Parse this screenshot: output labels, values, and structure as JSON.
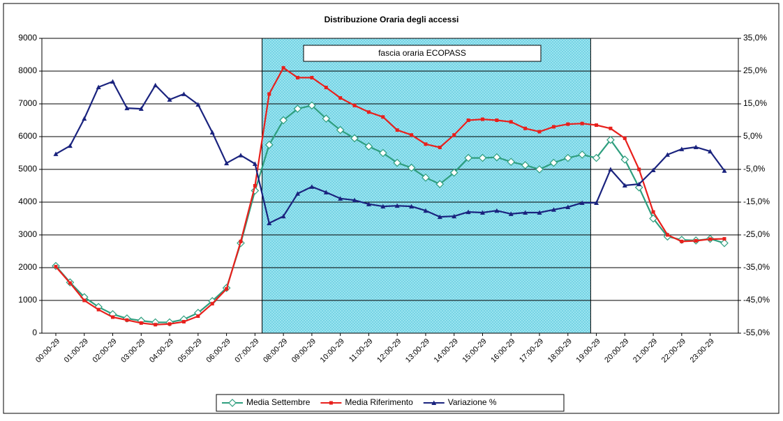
{
  "chart_data": {
    "type": "line",
    "title": "Distribuzione Oraria degli accessi",
    "annotation": "fascia oraria ECOPASS",
    "categories": [
      "00:00-29",
      null,
      "01:00-29",
      null,
      "02:00-29",
      null,
      "03:00-29",
      null,
      "04:00-29",
      null,
      "05:00-29",
      null,
      "06:00-29",
      null,
      "07:00-29",
      null,
      "08:00-29",
      null,
      "09:00-29",
      null,
      "10:00-29",
      null,
      "11:00-29",
      null,
      "12:00-29",
      null,
      "13:00-29",
      null,
      "14:00-29",
      null,
      "15:00-29",
      null,
      "16:00-29",
      null,
      "17:00-29",
      null,
      "18:00-29",
      null,
      "19:00-29",
      null,
      "20:00-29",
      null,
      "21:00-29",
      null,
      "22:00-29",
      null,
      "23:00-29",
      null
    ],
    "series": [
      {
        "name": "Media Settembre",
        "color": "#2e9e7e",
        "marker": "diamond",
        "values": [
          2050,
          1550,
          1100,
          800,
          580,
          450,
          380,
          330,
          330,
          420,
          620,
          980,
          1380,
          2750,
          4350,
          5750,
          6500,
          6850,
          6950,
          6550,
          6200,
          5950,
          5700,
          5500,
          5200,
          5050,
          4750,
          4550,
          4900,
          5350,
          5350,
          5370,
          5230,
          5130,
          5000,
          5200,
          5350,
          5450,
          5350,
          5900,
          5300,
          4450,
          3500,
          2950,
          2850,
          2830,
          2880,
          2750
        ]
      },
      {
        "name": "Media Riferimento",
        "color": "#e8201c",
        "marker": "square",
        "values": [
          2030,
          1530,
          1000,
          720,
          490,
          400,
          310,
          260,
          280,
          350,
          520,
          900,
          1350,
          2800,
          4500,
          7300,
          8100,
          7800,
          7800,
          7500,
          7180,
          6950,
          6750,
          6600,
          6200,
          6050,
          5770,
          5670,
          6050,
          6500,
          6530,
          6500,
          6450,
          6250,
          6150,
          6300,
          6380,
          6400,
          6350,
          6250,
          5950,
          5000,
          3700,
          3000,
          2800,
          2820,
          2870,
          2880
        ]
      },
      {
        "name": "Variazione %",
        "color": "#1a237e",
        "marker": "triangle",
        "axis": "y2",
        "values": [
          -0.3,
          2.2,
          10.5,
          20.1,
          21.8,
          13.7,
          13.5,
          20.7,
          16.3,
          18.0,
          14.8,
          6.3,
          -3.1,
          -0.7,
          -3.3,
          -21.4,
          -19.3,
          -12.4,
          -10.3,
          -12.0,
          -13.9,
          -14.4,
          -15.6,
          -16.3,
          -16.1,
          -16.3,
          -17.6,
          -19.5,
          -19.3,
          -18.0,
          -18.2,
          -17.6,
          -18.6,
          -18.2,
          -18.2,
          -17.3,
          -16.5,
          -15.2,
          -15.2,
          -5.0,
          -9.9,
          -9.5,
          -5.2,
          -0.5,
          1.2,
          1.8,
          0.5,
          -5.4
        ]
      }
    ],
    "ylim": [
      0,
      9000
    ],
    "yticks": [
      0,
      1000,
      2000,
      3000,
      4000,
      5000,
      6000,
      7000,
      8000,
      9000
    ],
    "y2lim": [
      -55,
      35
    ],
    "y2ticks": [
      {
        "value": -55,
        "label": "-55,0%"
      },
      {
        "value": -45,
        "label": "-45,0%"
      },
      {
        "value": -35,
        "label": "-35,0%"
      },
      {
        "value": -25,
        "label": "-25,0%"
      },
      {
        "value": -15,
        "label": "-15,0%"
      },
      {
        "value": -5,
        "label": "-5,0%"
      },
      {
        "value": 5,
        "label": "5,0%"
      },
      {
        "value": 15,
        "label": "15,0%"
      },
      {
        "value": 25,
        "label": "25,0%"
      },
      {
        "value": 35,
        "label": "35,0%"
      }
    ],
    "grid": true,
    "legend": "bottom"
  }
}
